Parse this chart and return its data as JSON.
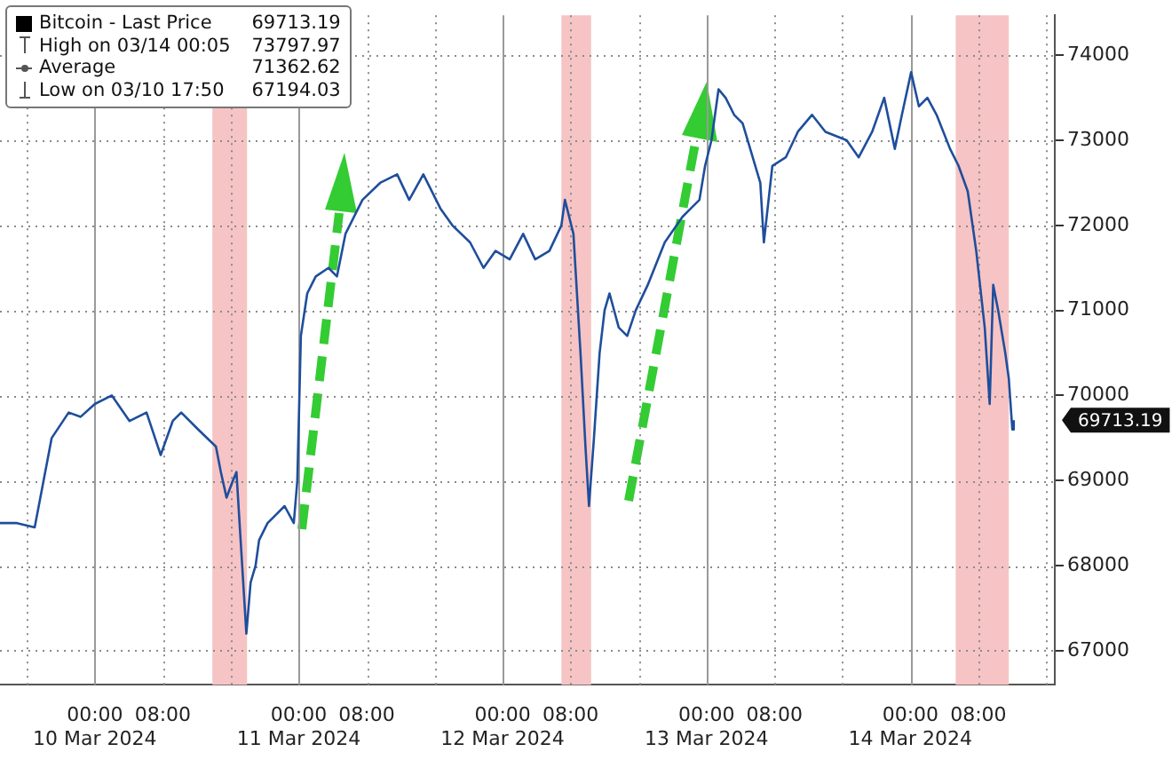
{
  "chart_data": {
    "type": "line",
    "x": [
      "2024-03-09T12:50",
      "2024-03-09T14:50",
      "2024-03-09T16:55",
      "2024-03-09T18:55",
      "2024-03-09T20:55",
      "2024-03-09T22:20",
      "2024-03-10T00:00",
      "2024-03-10T02:00",
      "2024-03-10T04:05",
      "2024-03-10T06:05",
      "2024-03-10T07:45",
      "2024-03-10T09:10",
      "2024-03-10T10:10",
      "2024-03-10T12:10",
      "2024-03-10T14:15",
      "2024-03-10T14:50",
      "2024-03-10T15:30",
      "2024-03-10T16:15",
      "2024-03-10T16:40",
      "2024-03-10T17:50",
      "2024-03-10T18:20",
      "2024-03-10T18:55",
      "2024-03-10T19:20",
      "2024-03-10T20:20",
      "2024-03-10T21:20",
      "2024-03-10T22:20",
      "2024-03-10T23:25",
      "2024-03-10T23:50",
      "2024-03-11T00:15",
      "2024-03-11T01:00",
      "2024-03-11T02:00",
      "2024-03-11T03:30",
      "2024-03-11T04:30",
      "2024-03-11T05:30",
      "2024-03-11T07:30",
      "2024-03-11T09:35",
      "2024-03-11T11:35",
      "2024-03-11T13:00",
      "2024-03-11T14:40",
      "2024-03-11T16:40",
      "2024-03-11T18:05",
      "2024-03-11T20:10",
      "2024-03-11T21:45",
      "2024-03-11T23:10",
      "2024-03-12T00:50",
      "2024-03-12T02:25",
      "2024-03-12T03:50",
      "2024-03-12T05:30",
      "2024-03-12T06:55",
      "2024-03-12T07:20",
      "2024-03-12T08:20",
      "2024-03-12T09:10",
      "2024-03-12T09:45",
      "2024-03-12T10:10",
      "2024-03-12T10:45",
      "2024-03-12T11:25",
      "2024-03-12T12:00",
      "2024-03-12T12:35",
      "2024-03-12T13:40",
      "2024-03-12T14:40",
      "2024-03-12T15:40",
      "2024-03-12T17:05",
      "2024-03-12T19:05",
      "2024-03-12T21:10",
      "2024-03-12T22:10",
      "2024-03-12T23:10",
      "2024-03-12T23:50",
      "2024-03-13T00:35",
      "2024-03-13T01:25",
      "2024-03-13T02:15",
      "2024-03-13T03:15",
      "2024-03-13T04:15",
      "2024-03-13T06:20",
      "2024-03-13T06:45",
      "2024-03-13T07:45",
      "2024-03-13T09:20",
      "2024-03-13T10:45",
      "2024-03-13T12:25",
      "2024-03-13T14:00",
      "2024-03-13T16:30",
      "2024-03-13T17:55",
      "2024-03-13T19:30",
      "2024-03-13T20:55",
      "2024-03-13T22:10",
      "2024-03-13T23:00",
      "2024-03-14T00:05",
      "2024-03-14T01:00",
      "2024-03-14T02:00",
      "2024-03-14T03:05",
      "2024-03-14T04:40",
      "2024-03-14T05:40",
      "2024-03-14T06:45",
      "2024-03-14T07:45",
      "2024-03-14T08:45",
      "2024-03-14T09:20",
      "2024-03-14T09:45",
      "2024-03-14T10:20",
      "2024-03-14T11:10",
      "2024-03-14T11:35",
      "2024-03-14T12:00",
      "2024-03-14T12:10"
    ],
    "series": [
      {
        "name": "Bitcoin - Last Price",
        "color": "#1f4e9c",
        "values": [
          68500,
          68500,
          68450,
          69500,
          69800,
          69750,
          69900,
          70000,
          69700,
          69800,
          69300,
          69700,
          69800,
          69600,
          69400,
          69100,
          68800,
          69000,
          69100,
          67200,
          67800,
          68000,
          68300,
          68500,
          68600,
          68700,
          68500,
          69000,
          70700,
          71200,
          71400,
          71500,
          71400,
          71900,
          72300,
          72500,
          72600,
          72300,
          72600,
          72200,
          72000,
          71800,
          71500,
          71700,
          71600,
          71900,
          71600,
          71700,
          72000,
          72300,
          71900,
          70500,
          69400,
          68700,
          69500,
          70500,
          71000,
          71200,
          70800,
          70700,
          71000,
          71300,
          71800,
          72100,
          72200,
          72300,
          72700,
          73000,
          73600,
          73500,
          73300,
          73200,
          72500,
          71800,
          72700,
          72800,
          73100,
          73300,
          73100,
          73000,
          72800,
          73100,
          73500,
          72900,
          73300,
          73800,
          73400,
          73500,
          73300,
          72900,
          72700,
          72400,
          71700,
          70800,
          69900,
          71300,
          71000,
          70500,
          70200,
          69600,
          69710
        ]
      }
    ],
    "xlim": [
      "2024-03-09T12:50",
      "2024-03-14T17:00"
    ],
    "xticks": [
      {
        "value": "2024-03-09T16:00",
        "label": null
      },
      {
        "value": "2024-03-10T00:00",
        "label": "00:00\n10 Mar 2024"
      },
      {
        "value": "2024-03-10T08:00",
        "label": "08:00"
      },
      {
        "value": "2024-03-10T16:00",
        "label": null
      },
      {
        "value": "2024-03-11T00:00",
        "label": "00:00\n11 Mar 2024"
      },
      {
        "value": "2024-03-11T08:00",
        "label": "08:00"
      },
      {
        "value": "2024-03-11T16:00",
        "label": null
      },
      {
        "value": "2024-03-12T00:00",
        "label": "00:00\n12 Mar 2024"
      },
      {
        "value": "2024-03-12T08:00",
        "label": "08:00"
      },
      {
        "value": "2024-03-12T16:00",
        "label": null
      },
      {
        "value": "2024-03-13T00:00",
        "label": "00:00\n13 Mar 2024"
      },
      {
        "value": "2024-03-13T08:00",
        "label": "08:00"
      },
      {
        "value": "2024-03-13T16:00",
        "label": null
      },
      {
        "value": "2024-03-14T00:00",
        "label": "00:00\n14 Mar 2024"
      },
      {
        "value": "2024-03-14T08:00",
        "label": "08:00"
      },
      {
        "value": "2024-03-14T16:00",
        "label": null
      }
    ],
    "ylim": [
      66600,
      74470
    ],
    "yticks": [
      67000,
      68000,
      69000,
      70000,
      71000,
      72000,
      73000,
      74000
    ],
    "bands": [
      {
        "axis": "x",
        "from": "2024-03-10T13:50",
        "to": "2024-03-10T17:55",
        "color": "#f6c4c4"
      },
      {
        "axis": "x",
        "from": "2024-03-12T06:55",
        "to": "2024-03-12T10:25",
        "color": "#f6c4c4"
      },
      {
        "axis": "x",
        "from": "2024-03-14T05:20",
        "to": "2024-03-14T11:35",
        "color": "#f6c4c4"
      }
    ],
    "annotations": [
      "69713.19",
      "High on 03/14 00:05 73797.97",
      "Average 71362.62",
      "Low on 03/10 17:50 67194.03"
    ],
    "grid": true,
    "legend": "top left",
    "line_style": "solid",
    "marker": "none"
  }
}
